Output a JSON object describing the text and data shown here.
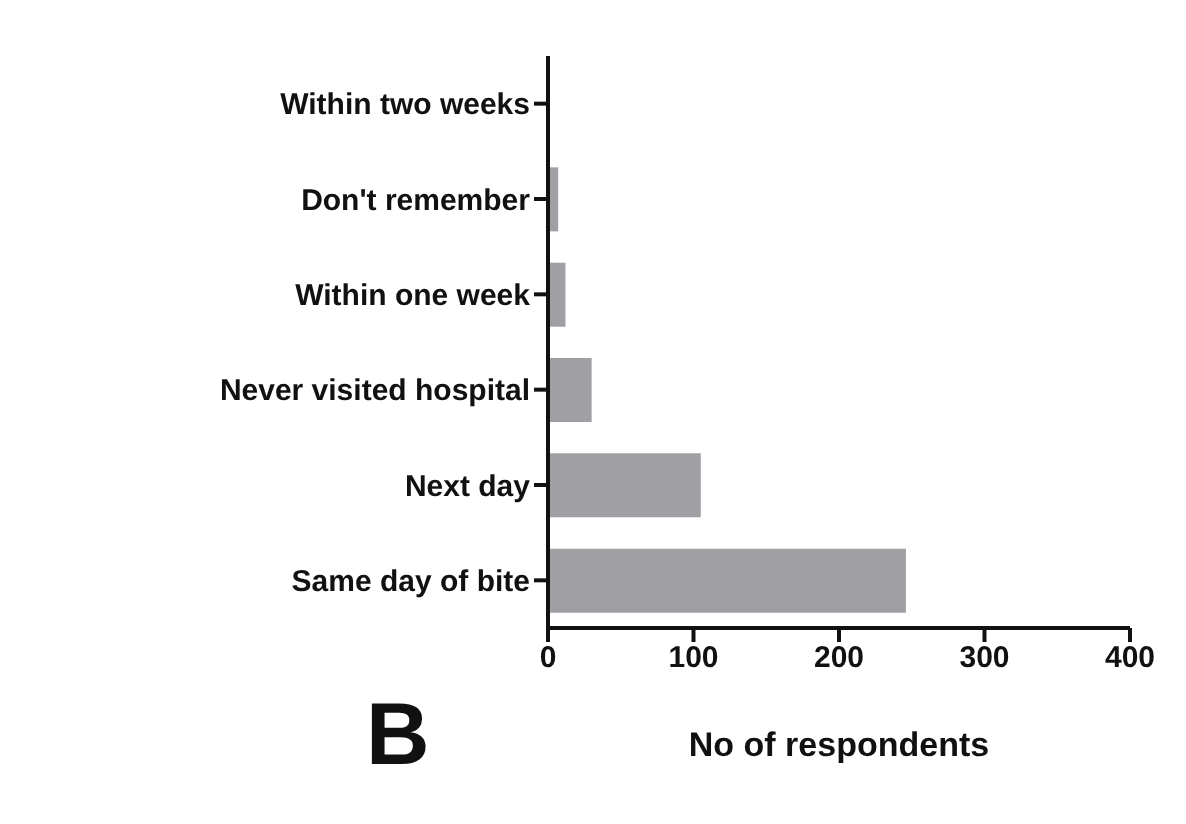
{
  "chart_data": {
    "type": "bar",
    "orientation": "horizontal",
    "categories": [
      "Within two weeks",
      "Don't remember",
      "Within one week",
      "Never visited hospital",
      "Next day",
      "Same day of bite"
    ],
    "values": [
      0,
      7,
      12,
      30,
      105,
      246
    ],
    "color": "#a0a0a4",
    "xlabel": "No of respondents",
    "xlim": [
      0,
      400
    ],
    "xticks": [
      0,
      100,
      200,
      300,
      400
    ],
    "grid": false,
    "annotations": [
      "B"
    ]
  }
}
